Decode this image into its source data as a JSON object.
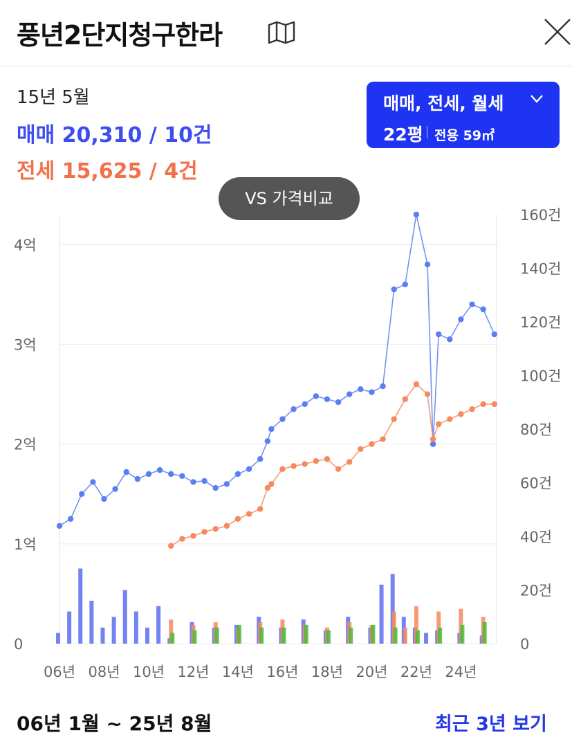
{
  "header": {
    "title": "풍년2단지청구한라",
    "map_icon": "map-icon",
    "close_icon": "close-icon"
  },
  "summary": {
    "date": "15년 5월",
    "sale_text": "매매 20,310 / 10건",
    "jeonse_text": "전세 15,625 / 4건"
  },
  "filter": {
    "types": "매매, 전세, 월세",
    "pyeong": "22평",
    "area": "전용 59㎡"
  },
  "vs_button": "VS 가격비교",
  "footer": {
    "range": "06년 1월 ~ 25년 8월",
    "recent_link": "최근 3년 보기"
  },
  "colors": {
    "sale": "#5b7ff2",
    "jeonse": "#f58a5e",
    "sale_text": "#3d4ef0",
    "jeonse_text": "#f2714a",
    "monthly": "#4cbb3a",
    "accent": "#1f34f2"
  },
  "chart_data": {
    "type": "line",
    "x_ticks": [
      "06년",
      "08년",
      "10년",
      "12년",
      "14년",
      "16년",
      "18년",
      "20년",
      "22년",
      "24년"
    ],
    "y_left_ticks": [
      "0",
      "1억",
      "2억",
      "3억",
      "4억"
    ],
    "y_left_range": [
      0,
      4.3
    ],
    "y_right_ticks": [
      "0",
      "20건",
      "40건",
      "60건",
      "80건",
      "100건",
      "120건",
      "140건",
      "160건"
    ],
    "y_right_range": [
      0,
      160
    ],
    "x_range": [
      2006.0,
      2025.6
    ],
    "grid": true,
    "series": [
      {
        "name": "매매",
        "color": "#5b7ff2",
        "x": [
          2006.0,
          2006.5,
          2007.0,
          2007.5,
          2008.0,
          2008.5,
          2009.0,
          2009.5,
          2010.0,
          2010.5,
          2011.0,
          2011.5,
          2012.0,
          2012.5,
          2013.0,
          2013.5,
          2014.0,
          2014.5,
          2015.0,
          2015.33,
          2015.5,
          2016.0,
          2016.5,
          2017.0,
          2017.5,
          2018.0,
          2018.5,
          2019.0,
          2019.5,
          2020.0,
          2020.5,
          2021.0,
          2021.5,
          2022.0,
          2022.5,
          2022.75,
          2023.0,
          2023.5,
          2024.0,
          2024.5,
          2025.0,
          2025.5
        ],
        "y": [
          1.18,
          1.25,
          1.5,
          1.62,
          1.45,
          1.55,
          1.72,
          1.65,
          1.7,
          1.74,
          1.7,
          1.68,
          1.62,
          1.63,
          1.56,
          1.6,
          1.7,
          1.75,
          1.85,
          2.03,
          2.15,
          2.25,
          2.35,
          2.4,
          2.48,
          2.45,
          2.42,
          2.5,
          2.55,
          2.52,
          2.58,
          3.55,
          3.6,
          4.3,
          3.8,
          2.0,
          3.1,
          3.05,
          3.25,
          3.4,
          3.35,
          3.1
        ]
      },
      {
        "name": "전세",
        "color": "#f58a5e",
        "x": [
          2011.0,
          2011.5,
          2012.0,
          2012.5,
          2013.0,
          2013.5,
          2014.0,
          2014.5,
          2015.0,
          2015.33,
          2015.5,
          2016.0,
          2016.5,
          2017.0,
          2017.5,
          2018.0,
          2018.5,
          2019.0,
          2019.5,
          2020.0,
          2020.5,
          2021.0,
          2021.5,
          2022.0,
          2022.5,
          2022.75,
          2023.0,
          2023.5,
          2024.0,
          2024.5,
          2025.0,
          2025.5
        ],
        "y": [
          0.98,
          1.05,
          1.08,
          1.12,
          1.15,
          1.18,
          1.25,
          1.3,
          1.35,
          1.56,
          1.6,
          1.75,
          1.78,
          1.8,
          1.83,
          1.85,
          1.75,
          1.82,
          1.95,
          2.0,
          2.05,
          2.25,
          2.45,
          2.6,
          2.5,
          2.05,
          2.2,
          2.25,
          2.3,
          2.35,
          2.4,
          2.4
        ]
      },
      {
        "name": "매매 거래량",
        "color": "#5b6ef0",
        "x": [
          2006.0,
          2006.5,
          2007.0,
          2007.5,
          2008.0,
          2008.5,
          2009.0,
          2009.5,
          2010.0,
          2010.5,
          2011.0,
          2012.0,
          2013.0,
          2014.0,
          2015.0,
          2016.0,
          2017.0,
          2018.0,
          2019.0,
          2020.0,
          2020.5,
          2021.0,
          2021.5,
          2022.0,
          2022.5,
          2023.0,
          2024.0,
          2025.0
        ],
        "y": [
          4,
          12,
          28,
          16,
          6,
          10,
          20,
          12,
          6,
          14,
          2,
          8,
          6,
          7,
          10,
          6,
          9,
          5,
          10,
          6,
          22,
          26,
          10,
          6,
          4,
          5,
          4,
          3
        ]
      },
      {
        "name": "전세 거래량",
        "color": "#f58a5e",
        "x": [
          2011.0,
          2012.0,
          2013.0,
          2014.0,
          2015.0,
          2016.0,
          2017.0,
          2018.0,
          2019.0,
          2020.0,
          2021.0,
          2021.5,
          2022.0,
          2023.0,
          2024.0,
          2025.0
        ],
        "y": [
          9,
          7,
          8,
          6,
          8,
          9,
          7,
          6,
          8,
          7,
          12,
          6,
          14,
          12,
          13,
          10
        ]
      },
      {
        "name": "월세 거래량",
        "color": "#4cbb3a",
        "x": [
          2011.0,
          2012.0,
          2013.0,
          2014.0,
          2015.0,
          2016.0,
          2017.0,
          2018.0,
          2019.0,
          2020.0,
          2021.0,
          2022.0,
          2023.0,
          2024.0,
          2025.0
        ],
        "y": [
          4,
          5,
          6,
          7,
          6,
          6,
          7,
          5,
          6,
          7,
          6,
          5,
          6,
          7,
          8
        ]
      }
    ]
  }
}
